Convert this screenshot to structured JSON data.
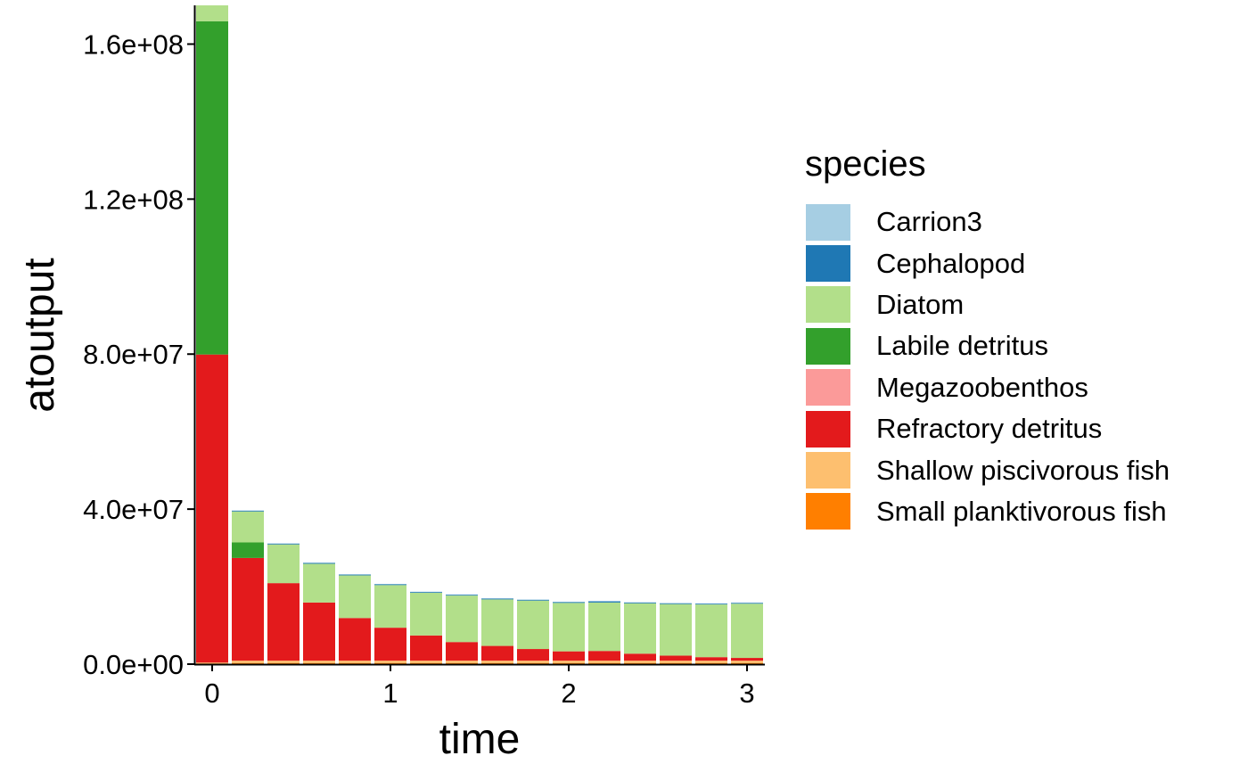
{
  "chart_data": {
    "type": "bar",
    "stacked": true,
    "xlabel": "time",
    "ylabel": "atoutput",
    "xlim": [
      -0.1,
      3.1
    ],
    "ylim": [
      0,
      170000000
    ],
    "x_ticks": [
      0,
      1,
      2,
      3
    ],
    "y_ticks": [
      0,
      40000000,
      80000000,
      120000000,
      160000000
    ],
    "y_tick_labels": [
      "0.0e+00",
      "4.0e+07",
      "8.0e+07",
      "1.2e+08",
      "1.6e+08"
    ],
    "x_tick_labels": [
      "0",
      "1",
      "2",
      "3"
    ],
    "legend_title": "species",
    "legend_position": "right",
    "grid": false,
    "species": [
      {
        "name": "Carrion3",
        "color": "#A6CEE3"
      },
      {
        "name": "Cephalopod",
        "color": "#1F78B4"
      },
      {
        "name": "Diatom",
        "color": "#B2DF8A"
      },
      {
        "name": "Labile detritus",
        "color": "#33A02C"
      },
      {
        "name": "Megazoobenthos",
        "color": "#FB9A99"
      },
      {
        "name": "Refractory detritus",
        "color": "#E31A1C"
      },
      {
        "name": "Shallow piscivorous fish",
        "color": "#FDBF6F"
      },
      {
        "name": "Small planktivorous fish",
        "color": "#FF7F00"
      }
    ],
    "x": [
      0,
      0.2,
      0.4,
      0.6,
      0.8,
      1.0,
      1.2,
      1.4,
      1.6,
      1.8,
      2.0,
      2.2,
      2.4,
      2.6,
      2.8,
      3.0
    ],
    "series": [
      {
        "name": "Carrion3",
        "values": [
          0,
          100000,
          100000,
          100000,
          100000,
          100000,
          100000,
          100000,
          100000,
          100000,
          100000,
          100000,
          100000,
          100000,
          100000,
          100000
        ]
      },
      {
        "name": "Cephalopod",
        "values": [
          0,
          200000,
          200000,
          200000,
          200000,
          200000,
          200000,
          200000,
          200000,
          200000,
          200000,
          300000,
          200000,
          200000,
          200000,
          200000
        ]
      },
      {
        "name": "Diatom",
        "values": [
          12000000,
          8000000,
          10000000,
          10000000,
          11000000,
          11000000,
          11000000,
          12000000,
          12000000,
          12500000,
          12500000,
          12500000,
          13000000,
          13300000,
          13600000,
          14000000
        ]
      },
      {
        "name": "Labile detritus",
        "values": [
          86000000,
          4000000,
          0,
          0,
          0,
          0,
          0,
          0,
          0,
          0,
          0,
          0,
          0,
          0,
          0,
          0
        ]
      },
      {
        "name": "Megazoobenthos",
        "values": [
          0,
          0,
          0,
          0,
          0,
          0,
          0,
          0,
          0,
          0,
          0,
          0,
          0,
          0,
          0,
          0
        ]
      },
      {
        "name": "Refractory detritus",
        "values": [
          79500000,
          26500000,
          20000000,
          15000000,
          11000000,
          8500000,
          6500000,
          4800000,
          3800000,
          3000000,
          2400000,
          2500000,
          1800000,
          1300000,
          900000,
          700000
        ]
      },
      {
        "name": "Shallow piscivorous fish",
        "values": [
          200000,
          600000,
          600000,
          600000,
          600000,
          600000,
          600000,
          600000,
          600000,
          600000,
          600000,
          600000,
          600000,
          600000,
          600000,
          600000
        ]
      },
      {
        "name": "Small planktivorous fish",
        "values": [
          200000,
          300000,
          300000,
          300000,
          300000,
          300000,
          300000,
          300000,
          300000,
          300000,
          300000,
          300000,
          300000,
          300000,
          300000,
          300000
        ]
      }
    ]
  }
}
